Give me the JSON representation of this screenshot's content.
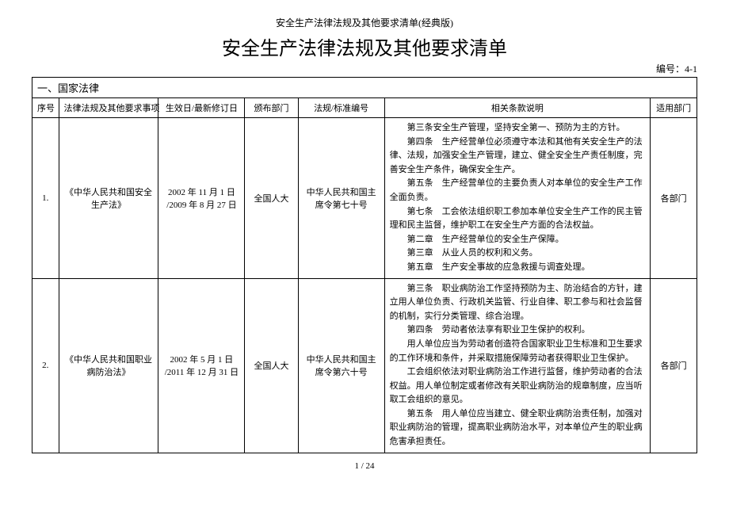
{
  "header_small": "安全生产法律法规及其他要求清单(经典版)",
  "title": "安全生产法律法规及其他要求清单",
  "doc_number": "编号：4-1",
  "section_heading": "一、国家法律",
  "columns": {
    "idx": "序号",
    "name": "法律法规及其他要求事项",
    "date": "生效日/最新修订日",
    "dept": "颁布部门",
    "code": "法规/标准编号",
    "desc": "相关条款说明",
    "apply": "适用部门"
  },
  "rows": [
    {
      "idx": "1.",
      "name": "《中华人民共和国安全生产法》",
      "date": "2002 年 11 月 1 日 /2009 年 8 月 27 日",
      "dept": "全国人大",
      "code": "中华人民共和国主席令第七十号",
      "desc_lines": [
        "第三条安全生产管理，坚持安全第一、预防为主的方针。",
        "第四条　生产经营单位必须遵守本法和其他有关安全生产的法律、法规，加强安全生产管理，建立、健全安全生产责任制度，完善安全生产条件，确保安全生产。",
        "第五条　生产经营单位的主要负责人对本单位的安全生产工作全面负责。",
        "第七条　工会依法组织职工参加本单位安全生产工作的民主管理和民主监督，维护职工在安全生产方面的合法权益。",
        "第二章　生产经营单位的安全生产保障。",
        "第三章　从业人员的权利和义务。",
        "第五章　生产安全事故的应急救援与调查处理。"
      ],
      "apply": "各部门"
    },
    {
      "idx": "2.",
      "name": "《中华人民共和国职业病防治法》",
      "date": "2002 年 5 月 1 日 /2011 年 12 月 31 日",
      "dept": "全国人大",
      "code": "中华人民共和国主席令第六十号",
      "desc_lines": [
        "第三条　职业病防治工作坚持预防为主、防治结合的方针，建立用人单位负责、行政机关监管、行业自律、职工参与和社会监督的机制，实行分类管理、综合治理。",
        "第四条　劳动者依法享有职业卫生保护的权利。",
        "用人单位应当为劳动者创造符合国家职业卫生标准和卫生要求的工作环境和条件，并采取措施保障劳动者获得职业卫生保护。",
        "工会组织依法对职业病防治工作进行监督，维护劳动者的合法权益。用人单位制定或者修改有关职业病防治的规章制度，应当听取工会组织的意见。",
        "第五条　用人单位应当建立、健全职业病防治责任制，加强对职业病防治的管理，提高职业病防治水平，对本单位产生的职业病危害承担责任。"
      ],
      "apply": "各部门"
    }
  ],
  "page_footer": "1 / 24"
}
